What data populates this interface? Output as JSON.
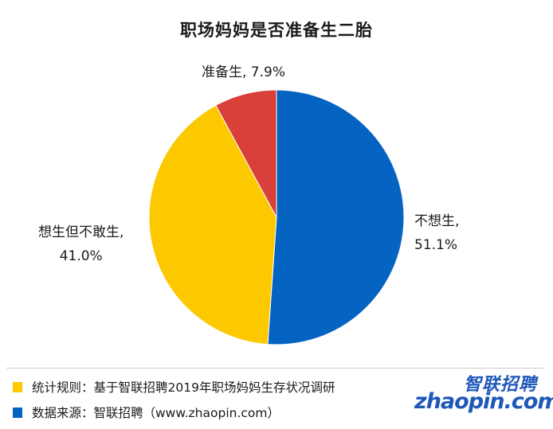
{
  "chart_data": {
    "type": "pie",
    "title": "职场妈妈是否准备生二胎",
    "slices": [
      {
        "label": "不想生",
        "value": 51.1,
        "value_text": "51.1%",
        "color": "#0563c1"
      },
      {
        "label": "想生但不敢生",
        "value": 41.0,
        "value_text": "41.0%",
        "color": "#fcc800"
      },
      {
        "label": "准备生",
        "value": 7.9,
        "value_text": "7.9%",
        "color": "#d9403a"
      }
    ],
    "start": "12 o'clock",
    "direction": "clockwise"
  },
  "labels": {
    "buxiang_name": "不想生,",
    "buxiang_value": "51.1%",
    "xiang_name": "想生但不敢生,",
    "xiang_value": "41.0%",
    "zhunbei": "准备生, 7.9%"
  },
  "notes": [
    {
      "text": "统计规则：基于智联招聘2019年职场妈妈生存状况调研",
      "marker_color": "#fcc800"
    },
    {
      "text": "数据来源：智联招聘（www.zhaopin.com）",
      "marker_color": "#0563c1"
    }
  ],
  "logo": {
    "cn": "智联招聘",
    "en": "zhaopin.com"
  }
}
